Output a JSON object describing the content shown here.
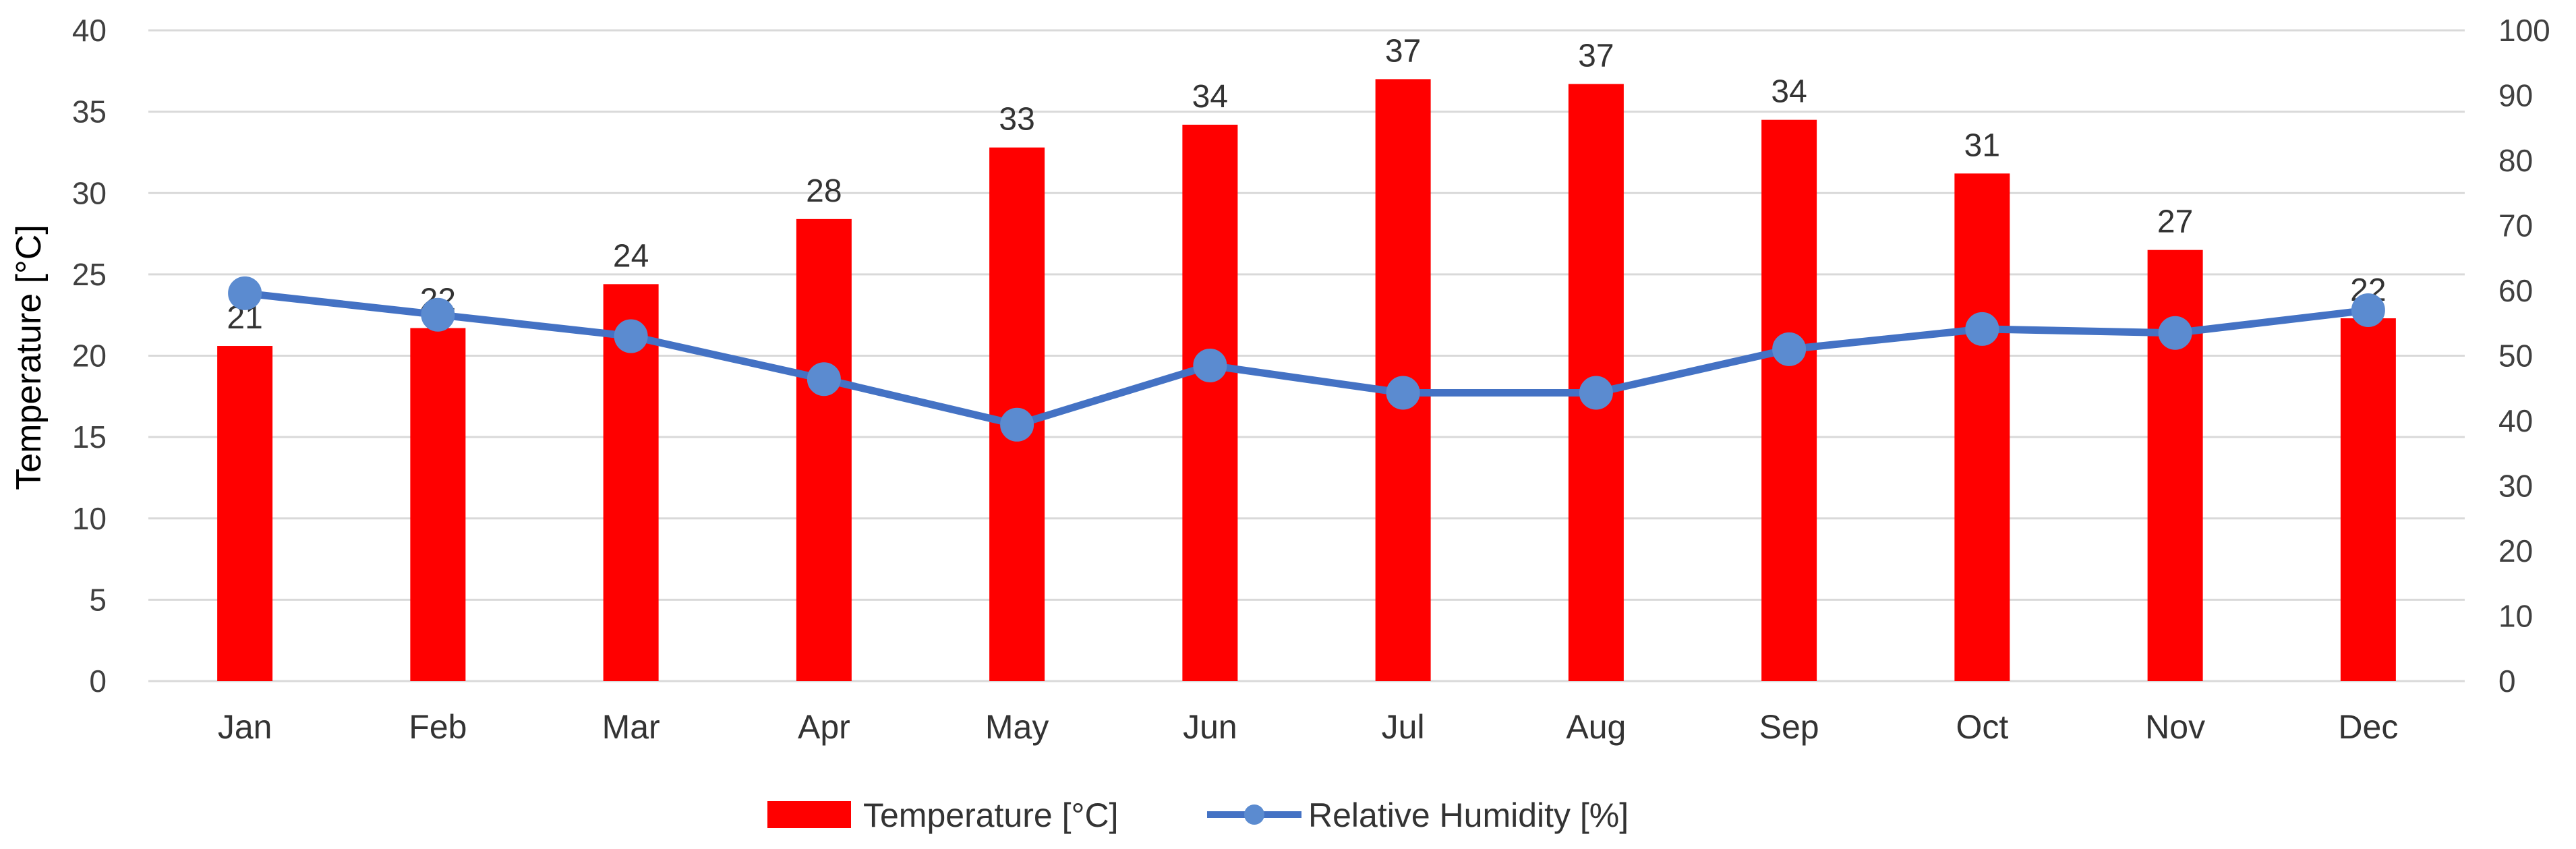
{
  "chart_data": {
    "type": "bar+line",
    "title": "",
    "categories": [
      "Jan",
      "Feb",
      "Mar",
      "Apr",
      "May",
      "Jun",
      "Jul",
      "Aug",
      "Sep",
      "Oct",
      "Nov",
      "Dec"
    ],
    "series": [
      {
        "name": "Temperature [°C]",
        "type": "bar",
        "axis": "left",
        "color": "#ff0000",
        "values": [
          20.6,
          21.7,
          24.4,
          28.4,
          32.8,
          34.2,
          37.0,
          36.7,
          34.5,
          31.2,
          26.5,
          22.3
        ],
        "data_labels": [
          "21",
          "22",
          "24",
          "28",
          "33",
          "34",
          "37",
          "37",
          "34",
          "31",
          "27",
          "22"
        ]
      },
      {
        "name": "Relative Humidity [%]",
        "type": "line",
        "axis": "right",
        "color": "#4472c4",
        "values": [
          59.6,
          56.3,
          53.0,
          46.4,
          39.4,
          48.5,
          44.3,
          44.3,
          51.0,
          54.1,
          53.5,
          57.0
        ]
      }
    ],
    "y_left": {
      "label": "Temperature [°C]",
      "ylim": [
        0,
        40
      ],
      "ticks": [
        "0",
        "5",
        "10",
        "15",
        "20",
        "25",
        "30",
        "35",
        "40"
      ]
    },
    "y_right": {
      "label": "",
      "ylim": [
        0,
        100
      ],
      "ticks": [
        "0",
        "10",
        "20",
        "30",
        "40",
        "50",
        "60",
        "70",
        "80",
        "90",
        "100"
      ]
    },
    "grid": true,
    "legend_position": "bottom-center",
    "legend": [
      "Temperature [°C]",
      "Relative Humidity [%]"
    ]
  }
}
